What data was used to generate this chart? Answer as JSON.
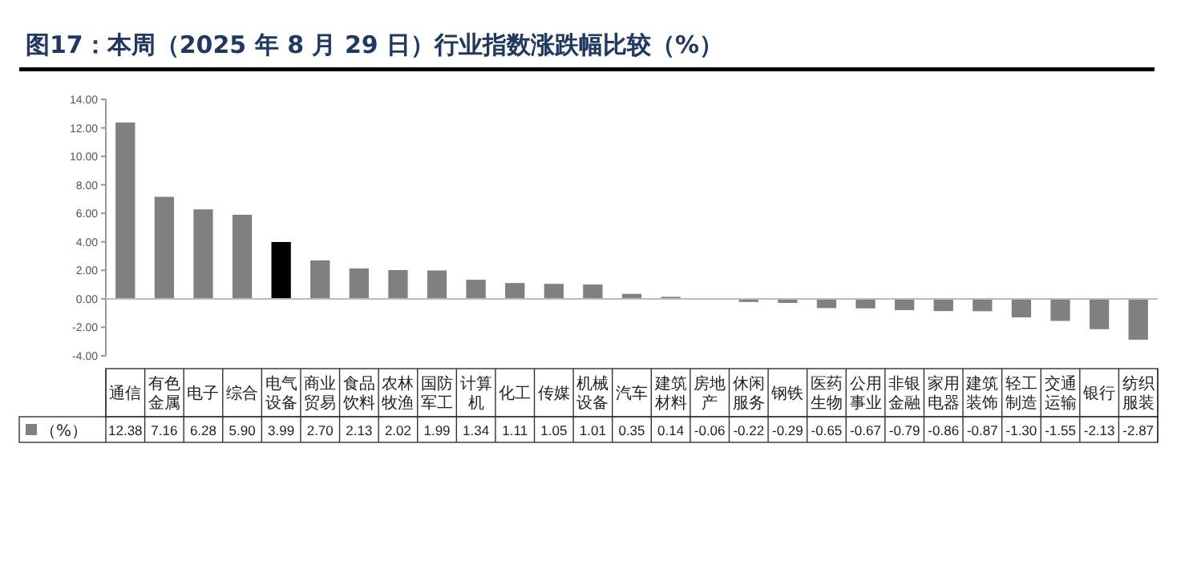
{
  "chart_data": {
    "type": "bar",
    "title": "图17：本周（2025 年 8 月 29 日）行业指数涨跌幅比较（%）",
    "categories": [
      "通信",
      "有色金属",
      "电子",
      "综合",
      "电气设备",
      "商业贸易",
      "食品饮料",
      "农林牧渔",
      "国防军工",
      "计算机",
      "化工",
      "传媒",
      "机械设备",
      "汽车",
      "建筑材料",
      "房地产",
      "休闲服务",
      "钢铁",
      "医药生物",
      "公用事业",
      "非银金融",
      "家用电器",
      "建筑装饰",
      "轻工制造",
      "交通运输",
      "银行",
      "纺织服装"
    ],
    "series": [
      {
        "name": "（%）",
        "color": "#808080",
        "colors": [
          "#808080",
          "#808080",
          "#808080",
          "#808080",
          "#000000",
          "#808080",
          "#808080",
          "#808080",
          "#808080",
          "#808080",
          "#808080",
          "#808080",
          "#808080",
          "#808080",
          "#808080",
          "#808080",
          "#808080",
          "#808080",
          "#808080",
          "#808080",
          "#808080",
          "#808080",
          "#808080",
          "#808080",
          "#808080",
          "#808080",
          "#808080"
        ],
        "values": [
          12.38,
          7.16,
          6.28,
          5.9,
          3.99,
          2.7,
          2.13,
          2.02,
          1.99,
          1.34,
          1.11,
          1.05,
          1.01,
          0.35,
          0.14,
          -0.06,
          -0.22,
          -0.29,
          -0.65,
          -0.67,
          -0.79,
          -0.86,
          -0.87,
          -1.3,
          -1.55,
          -2.13,
          -2.87
        ],
        "value_labels": [
          "12.38",
          "7.16",
          "6.28",
          "5.90",
          "3.99",
          "2.70",
          "2.13",
          "2.02",
          "1.99",
          "1.34",
          "1.11",
          "1.05",
          "1.01",
          "0.35",
          "0.14",
          "-0.06",
          "-0.22",
          "-0.29",
          "-0.65",
          "-0.67",
          "-0.79",
          "-0.86",
          "-0.87",
          "-1.30",
          "-1.55",
          "-2.13",
          "-2.87"
        ]
      }
    ],
    "ylim": [
      -4,
      14
    ],
    "yticks": [
      {
        "value": -4,
        "label": "-4.00"
      },
      {
        "value": -2,
        "label": "-2.00"
      },
      {
        "value": 0,
        "label": "0.00"
      },
      {
        "value": 2,
        "label": "2.00"
      },
      {
        "value": 4,
        "label": "4.00"
      },
      {
        "value": 6,
        "label": "6.00"
      },
      {
        "value": 8,
        "label": "8.00"
      },
      {
        "value": 10,
        "label": "10.00"
      },
      {
        "value": 12,
        "label": "12.00"
      },
      {
        "value": 14,
        "label": "14.00"
      }
    ],
    "legend": "bottom"
  }
}
